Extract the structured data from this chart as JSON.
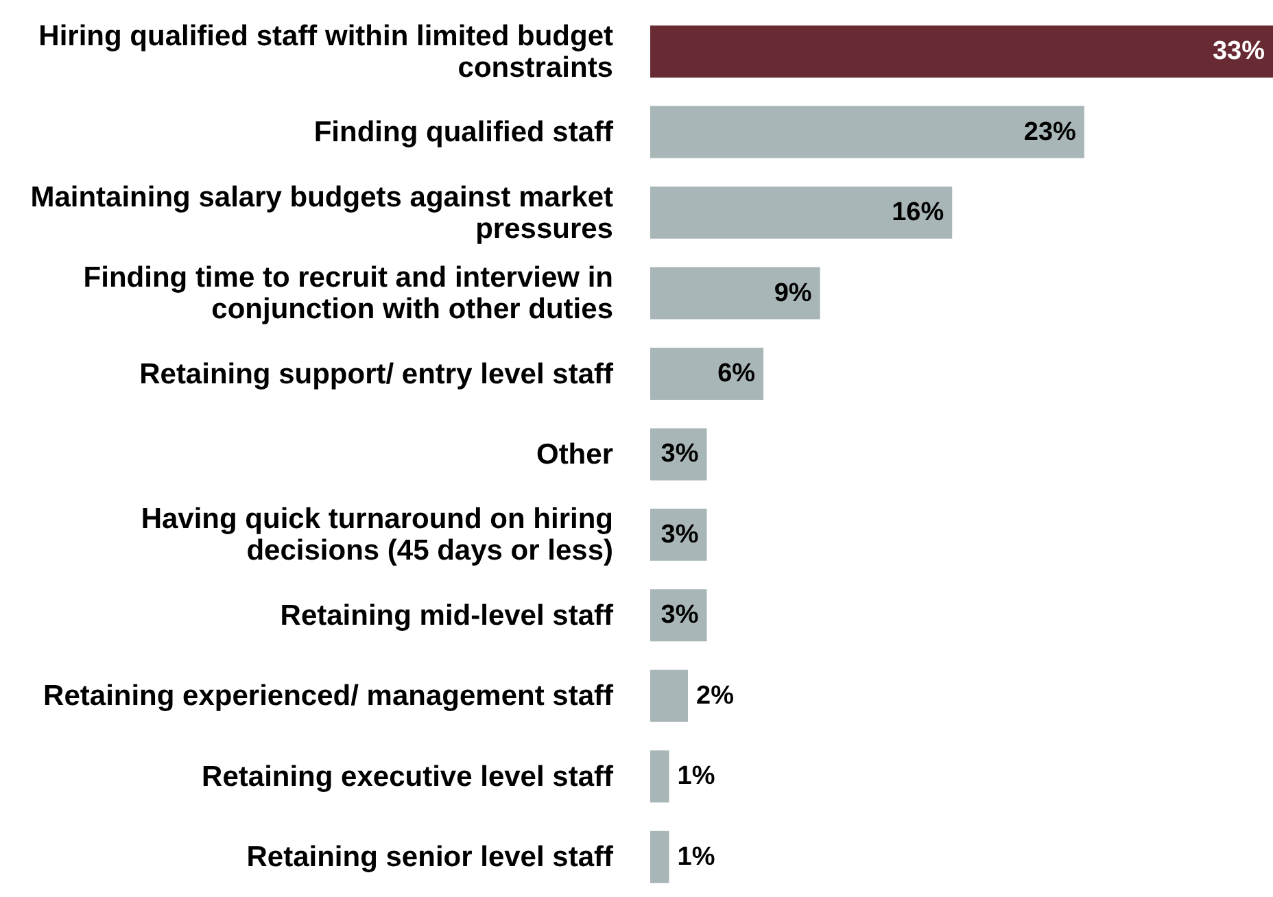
{
  "chart_data": {
    "type": "bar",
    "orientation": "horizontal",
    "categories": [
      "Hiring qualified staff within limited budget constraints",
      "Finding qualified staff",
      "Maintaining salary budgets against market pressures",
      "Finding time to recruit and interview in conjunction with other duties",
      "Retaining support/ entry level staff",
      "Other",
      "Having quick turnaround on hiring decisions (45 days or less)",
      "Retaining mid-level staff",
      "Retaining experienced/ management staff",
      "Retaining executive level staff",
      "Retaining senior level staff"
    ],
    "values": [
      33,
      23,
      16,
      9,
      6,
      3,
      3,
      3,
      2,
      1,
      1
    ],
    "value_labels": [
      "33%",
      "23%",
      "16%",
      "9%",
      "6%",
      "3%",
      "3%",
      "3%",
      "2%",
      "1%",
      "1%"
    ],
    "colors": [
      "#692b33",
      "#a9b6b8",
      "#a9b6b8",
      "#a9b6b8",
      "#a9b6b8",
      "#a9b6b8",
      "#a9b6b8",
      "#a9b6b8",
      "#a9b6b8",
      "#a9b6b8",
      "#a9b6b8"
    ],
    "grid": false,
    "legend": false,
    "tick_labels": "y"
  }
}
